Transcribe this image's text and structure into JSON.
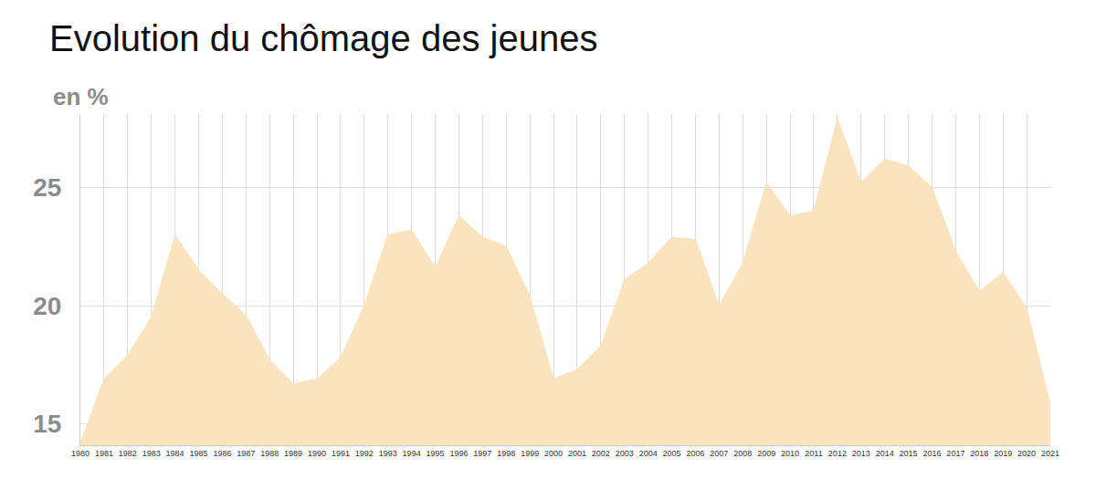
{
  "chart_data": {
    "type": "area",
    "title": "Evolution du chômage des jeunes",
    "y_label": "en %",
    "x": [
      1980,
      1981,
      1982,
      1983,
      1984,
      1985,
      1986,
      1987,
      1988,
      1989,
      1990,
      1991,
      1992,
      1993,
      1994,
      1995,
      1996,
      1997,
      1998,
      1999,
      2000,
      2001,
      2002,
      2003,
      2004,
      2005,
      2006,
      2007,
      2008,
      2009,
      2010,
      2011,
      2012,
      2013,
      2014,
      2015,
      2016,
      2017,
      2018,
      2019,
      2020,
      2021
    ],
    "values": [
      14.2,
      16.9,
      17.9,
      19.5,
      23.0,
      21.5,
      20.5,
      19.6,
      17.7,
      16.7,
      16.9,
      17.8,
      20.0,
      23.0,
      23.2,
      21.6,
      23.8,
      22.9,
      22.5,
      20.4,
      16.9,
      17.3,
      18.3,
      21.1,
      21.8,
      22.9,
      22.8,
      20.0,
      21.8,
      25.2,
      23.8,
      24.0,
      27.9,
      25.2,
      26.2,
      25.9,
      25.0,
      22.3,
      20.6,
      21.4,
      19.9,
      15.8
    ],
    "color": "#fae3bf",
    "xlim": [
      1980,
      2021
    ],
    "xticks": [
      1980,
      1981,
      1982,
      1983,
      1984,
      1985,
      1986,
      1987,
      1988,
      1989,
      1990,
      1991,
      1992,
      1993,
      1994,
      1995,
      1996,
      1997,
      1998,
      1999,
      2000,
      2001,
      2002,
      2003,
      2004,
      2005,
      2006,
      2007,
      2008,
      2009,
      2010,
      2011,
      2012,
      2013,
      2014,
      2015,
      2016,
      2017,
      2018,
      2019,
      2020,
      2021
    ],
    "ylim": [
      14.1,
      28.1
    ],
    "yticks": [
      15,
      20,
      25
    ],
    "grid": true
  }
}
